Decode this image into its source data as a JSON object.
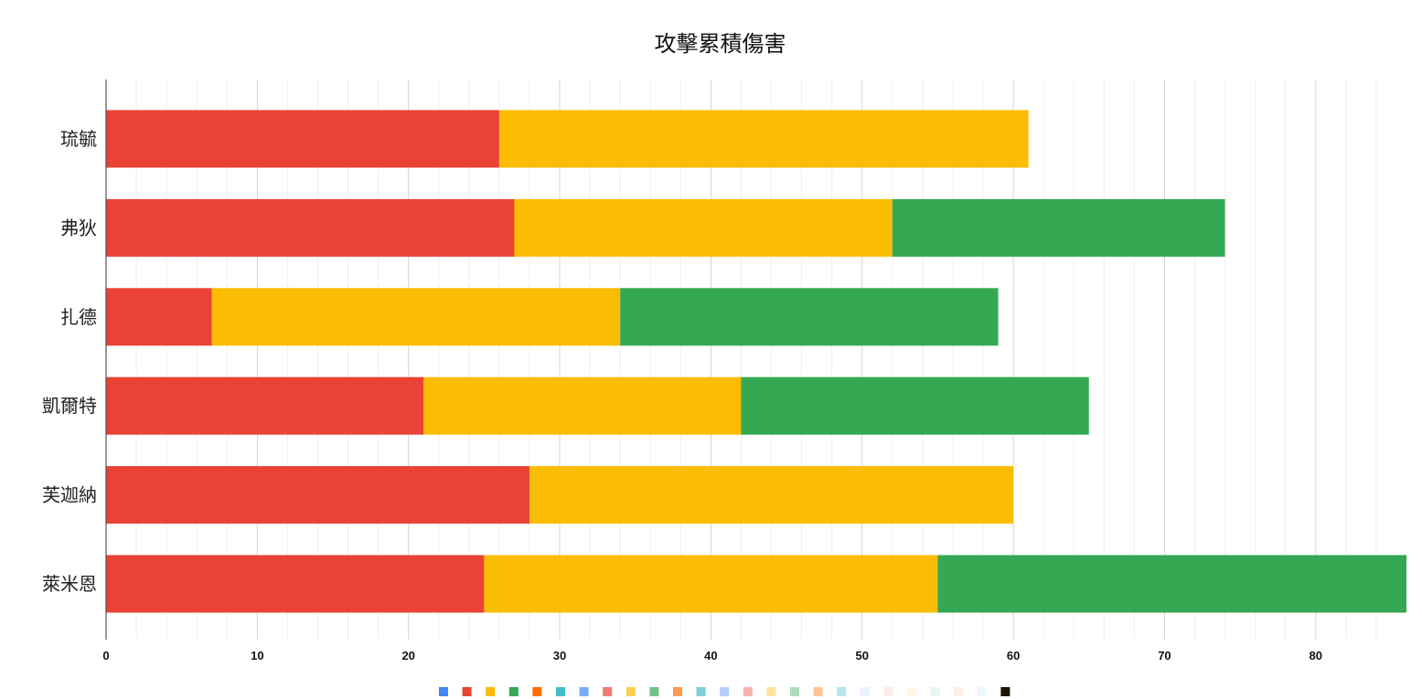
{
  "chart_data": {
    "type": "bar",
    "orientation": "horizontal",
    "stacked": true,
    "title": "攻擊累積傷害",
    "categories": [
      "琉毓",
      "弗狄",
      "扎德",
      "凱爾特",
      "芙迦納",
      "萊米恩"
    ],
    "series": [
      {
        "color": "#ea4335",
        "values": [
          26,
          27,
          7,
          21,
          28,
          25
        ]
      },
      {
        "color": "#fbbc04",
        "values": [
          35,
          25,
          27,
          21,
          32,
          30
        ]
      },
      {
        "color": "#34a853",
        "values": [
          0,
          22,
          25,
          23,
          0,
          31
        ]
      }
    ],
    "xlim": [
      0,
      86
    ],
    "xticks": [
      0,
      10,
      20,
      30,
      40,
      50,
      60,
      70,
      80
    ],
    "grid": true,
    "legend_position": "bottom",
    "legend_swatches": [
      "#4285f4",
      "#ea4335",
      "#fbbc04",
      "#34a853",
      "#ff6d01",
      "#46bdc6",
      "#7baaf7",
      "#f07b72",
      "#fcd04f",
      "#71c287",
      "#ff994d",
      "#7ed1d7",
      "#b3cefb",
      "#f7b4ae",
      "#fde49b",
      "#aedcba",
      "#ffc599",
      "#b5e5e8",
      "#ecf3fe",
      "#fdeceb",
      "#fff8e6",
      "#ebf6ee",
      "#ffefe6",
      "#ecf8f9",
      "#1f1300"
    ]
  }
}
